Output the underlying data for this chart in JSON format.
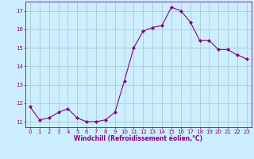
{
  "x": [
    0,
    1,
    2,
    3,
    4,
    5,
    6,
    7,
    8,
    9,
    10,
    11,
    12,
    13,
    14,
    15,
    16,
    17,
    18,
    19,
    20,
    21,
    22,
    23
  ],
  "y": [
    11.8,
    11.1,
    11.2,
    11.5,
    11.7,
    11.2,
    11.0,
    11.0,
    11.1,
    11.5,
    13.2,
    15.0,
    15.9,
    16.1,
    16.2,
    17.2,
    17.0,
    16.4,
    15.4,
    15.4,
    14.9,
    14.9,
    14.6,
    14.4
  ],
  "line_color": "#880088",
  "marker": "D",
  "marker_size": 2.0,
  "bg_color": "#cceeff",
  "grid_color": "#aacccc",
  "xlabel": "Windchill (Refroidissement éolien,°C)",
  "ylabel": "",
  "ylim": [
    10.7,
    17.5
  ],
  "xlim": [
    -0.5,
    23.5
  ],
  "yticks": [
    11,
    12,
    13,
    14,
    15,
    16,
    17
  ],
  "xticks": [
    0,
    1,
    2,
    3,
    4,
    5,
    6,
    7,
    8,
    9,
    10,
    11,
    12,
    13,
    14,
    15,
    16,
    17,
    18,
    19,
    20,
    21,
    22,
    23
  ],
  "tick_color": "#880088",
  "label_color": "#880088",
  "spine_color": "#880088",
  "tick_fontsize": 5.0,
  "xlabel_fontsize": 5.5
}
